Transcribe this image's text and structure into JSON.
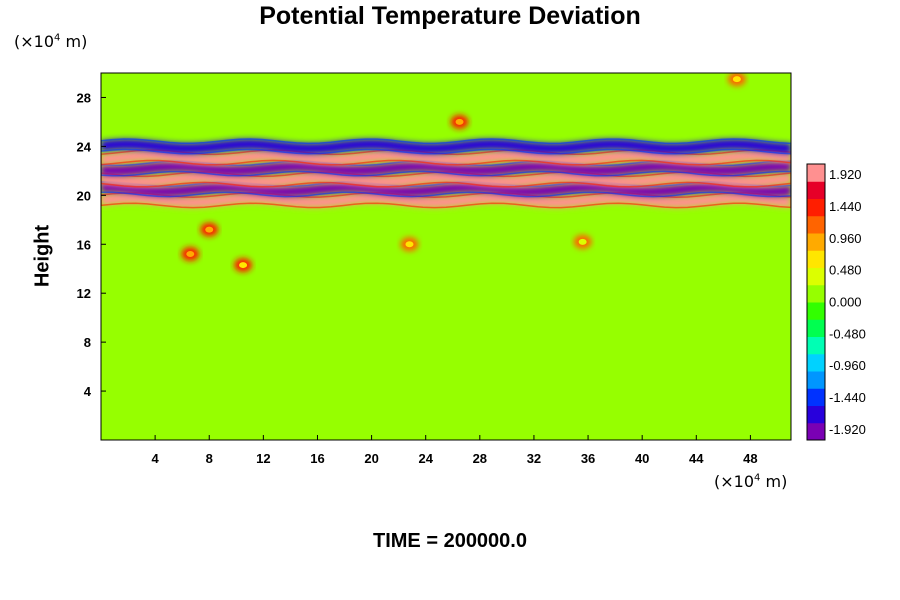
{
  "chart_data": {
    "type": "heatmap",
    "title": "Potential Temperature Deviation",
    "xlabel": "",
    "ylabel": "Height",
    "x_unit_prefix": "(×10",
    "x_unit_exp": "4",
    "x_unit_suffix": " m)",
    "y_unit_prefix": "(×10",
    "y_unit_exp": "4",
    "y_unit_suffix": " m)",
    "xlim": [
      0,
      51
    ],
    "ylim": [
      0,
      30
    ],
    "x_ticks": [
      4,
      8,
      12,
      16,
      20,
      24,
      28,
      32,
      36,
      40,
      44,
      48
    ],
    "y_ticks": [
      4,
      8,
      12,
      16,
      20,
      24,
      28
    ],
    "colorbar": {
      "min": -2.08,
      "max": 2.08,
      "ticks": [
        "1.920",
        "1.440",
        "0.960",
        "0.480",
        "0.000",
        "-0.480",
        "-0.960",
        "-1.440",
        "-1.920"
      ],
      "tick_values": [
        1.92,
        1.44,
        0.96,
        0.48,
        0.0,
        -0.48,
        -0.96,
        -1.44,
        -1.92
      ],
      "colors": [
        "#7a00b4",
        "#2800dc",
        "#0032ff",
        "#0096ff",
        "#00d2ff",
        "#00ffb4",
        "#00ff50",
        "#32ff00",
        "#96ff00",
        "#dcff00",
        "#ffe600",
        "#ffaa00",
        "#ff6400",
        "#ff1e00",
        "#e60028",
        "#ff9090"
      ]
    },
    "layers": [
      {
        "y": 19.6,
        "value": 1.9
      },
      {
        "y": 20.5,
        "value": -1.9
      },
      {
        "y": 21.3,
        "value": 1.9
      },
      {
        "y": 22.2,
        "value": -1.9
      },
      {
        "y": 23.1,
        "value": 1.9
      },
      {
        "y": 24.0,
        "value": -1.7
      }
    ],
    "blobs": [
      {
        "x": 6.6,
        "y": 15.2,
        "value": 1.4
      },
      {
        "x": 8.0,
        "y": 17.2,
        "value": 1.5
      },
      {
        "x": 10.5,
        "y": 14.3,
        "value": 1.3
      },
      {
        "x": 22.8,
        "y": 16.0,
        "value": 1.2
      },
      {
        "x": 35.6,
        "y": 16.2,
        "value": 1.1
      },
      {
        "x": 26.5,
        "y": 26.0,
        "value": 1.4
      },
      {
        "x": 47.0,
        "y": 29.5,
        "value": 1.2
      }
    ]
  },
  "time_label": "TIME = 200000.0"
}
